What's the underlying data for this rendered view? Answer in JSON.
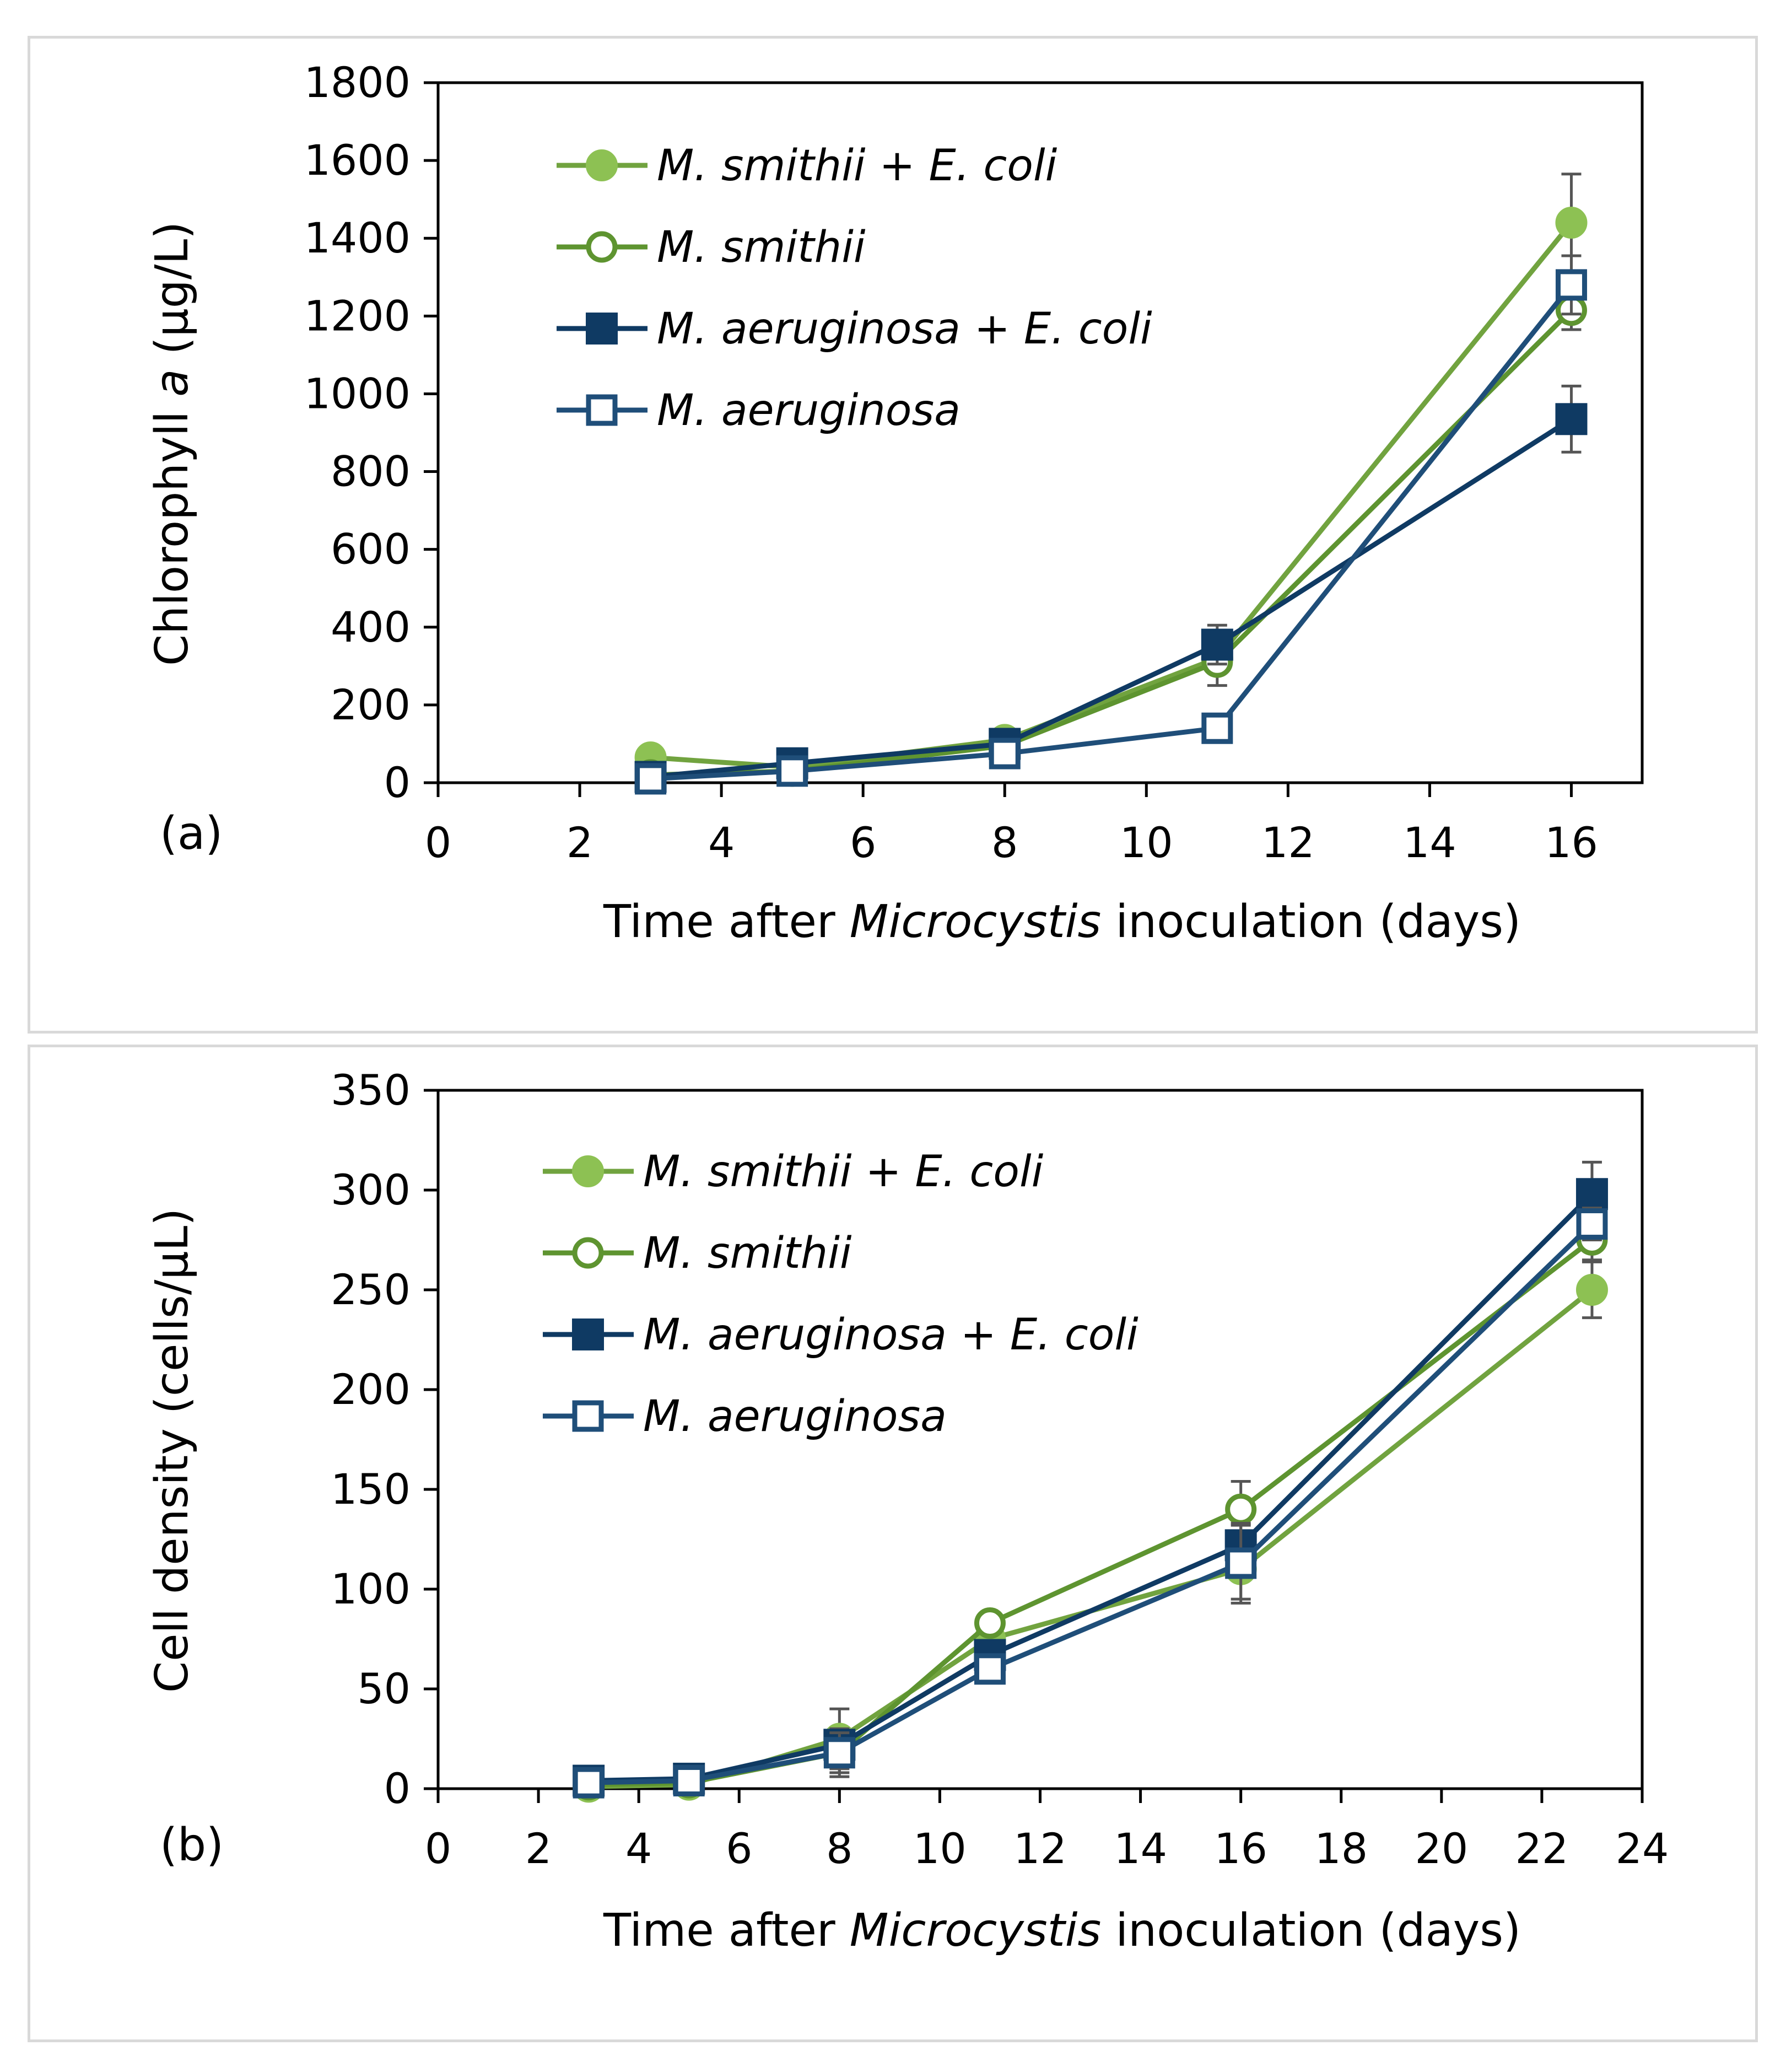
{
  "chart_data": [
    {
      "type": "line",
      "panel_label": "(a)",
      "title": "",
      "xlabel_parts": [
        "Time after ",
        "Microcystis",
        " inoculation (days)"
      ],
      "ylabel_parts": [
        "Chlorophyll ",
        "a",
        " (µg/L)"
      ],
      "xlim": [
        0,
        17
      ],
      "ylim": [
        0,
        1800
      ],
      "xticks": [
        0,
        2,
        4,
        6,
        8,
        10,
        12,
        14,
        16
      ],
      "yticks": [
        0,
        200,
        400,
        600,
        800,
        1000,
        1200,
        1400,
        1600,
        1800
      ],
      "grid": false,
      "legend_position": "top-left",
      "series": [
        {
          "name_parts": [
            "M. smithii + E. coli"
          ],
          "color": "#8dc153",
          "line_color": "#71a33f",
          "marker": "circle",
          "filled": true,
          "x": [
            3,
            5,
            8,
            11,
            16
          ],
          "y": [
            65,
            40,
            110,
            320,
            1440
          ],
          "err": [
            0,
            0,
            0,
            0,
            125
          ]
        },
        {
          "name_parts": [
            "M. smithii"
          ],
          "color": "#5e9430",
          "line_color": "#5e9430",
          "marker": "circle",
          "filled": false,
          "x": [
            3,
            5,
            8,
            11,
            16
          ],
          "y": [
            20,
            30,
            95,
            310,
            1215
          ],
          "err": [
            0,
            0,
            0,
            60,
            50
          ]
        },
        {
          "name_parts": [
            "M. aeruginosa + E. coli"
          ],
          "color": "#0f3a63",
          "line_color": "#0f3a63",
          "marker": "square",
          "filled": true,
          "x": [
            3,
            5,
            8,
            11,
            16
          ],
          "y": [
            15,
            50,
            100,
            355,
            935
          ],
          "err": [
            0,
            0,
            0,
            50,
            85
          ]
        },
        {
          "name_parts": [
            "M. aeruginosa"
          ],
          "color": "#1f4e79",
          "line_color": "#1f4e79",
          "marker": "square",
          "filled": false,
          "x": [
            3,
            5,
            8,
            11,
            16
          ],
          "y": [
            10,
            30,
            75,
            140,
            1280
          ],
          "err": [
            0,
            0,
            0,
            0,
            75
          ]
        }
      ]
    },
    {
      "type": "line",
      "panel_label": "(b)",
      "title": "",
      "xlabel_parts": [
        "Time after ",
        "Microcystis",
        " inoculation (days)"
      ],
      "ylabel_parts": [
        "Cell density (cells/µL)"
      ],
      "xlim": [
        0,
        24
      ],
      "ylim": [
        0,
        350
      ],
      "xticks": [
        0,
        2,
        4,
        6,
        8,
        10,
        12,
        14,
        16,
        18,
        20,
        22,
        24
      ],
      "yticks": [
        0,
        50,
        100,
        150,
        200,
        250,
        300,
        350
      ],
      "grid": false,
      "legend_position": "top-left",
      "series": [
        {
          "name_parts": [
            "M. smithii + E. coli"
          ],
          "color": "#8dc153",
          "line_color": "#71a33f",
          "marker": "circle",
          "filled": true,
          "x": [
            3,
            5,
            8,
            11,
            16,
            23
          ],
          "y": [
            1,
            2,
            25,
            75,
            110,
            250
          ],
          "err": [
            0,
            0,
            15,
            0,
            15,
            14
          ]
        },
        {
          "name_parts": [
            "M. smithii"
          ],
          "color": "#5e9430",
          "line_color": "#5e9430",
          "marker": "circle",
          "filled": false,
          "x": [
            3,
            5,
            8,
            11,
            16,
            23
          ],
          "y": [
            2,
            3,
            18,
            83,
            140,
            275
          ],
          "err": [
            0,
            0,
            12,
            0,
            14,
            10
          ]
        },
        {
          "name_parts": [
            "M. aeruginosa + E. coli"
          ],
          "color": "#0f3a63",
          "line_color": "#0f3a63",
          "marker": "square",
          "filled": true,
          "x": [
            3,
            5,
            8,
            11,
            16,
            23
          ],
          "y": [
            4,
            5,
            22,
            67,
            122,
            298
          ],
          "err": [
            0,
            0,
            8,
            0,
            10,
            16
          ]
        },
        {
          "name_parts": [
            "M. aeruginosa"
          ],
          "color": "#1f4e79",
          "line_color": "#1f4e79",
          "marker": "square",
          "filled": false,
          "x": [
            3,
            5,
            8,
            11,
            16,
            23
          ],
          "y": [
            3,
            4,
            18,
            60,
            113,
            283
          ],
          "err": [
            0,
            0,
            10,
            0,
            20,
            8
          ]
        }
      ]
    }
  ]
}
